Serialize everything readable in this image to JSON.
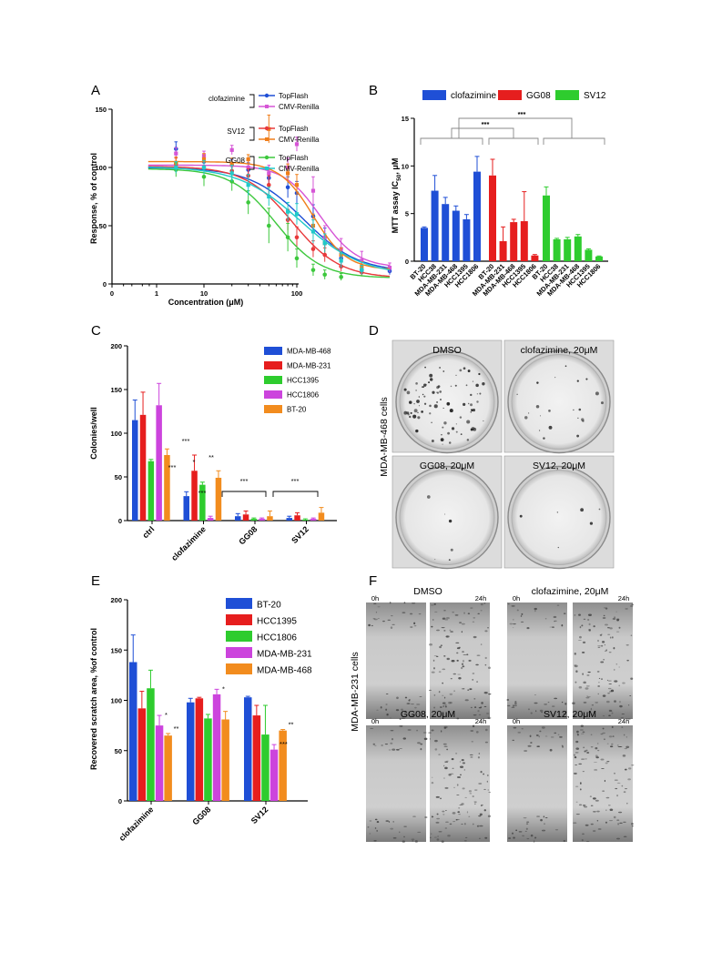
{
  "panels": {
    "A": {
      "letter": "A",
      "chart_data": {
        "type": "scatter",
        "xlabel": "Concentration (μM)",
        "ylabel": "Response, % of control",
        "xscale": "log",
        "xticks": [
          "0",
          "1",
          "10",
          "100"
        ],
        "yticks": [
          0,
          50,
          100,
          150
        ],
        "ylim": [
          0,
          150
        ],
        "legend": {
          "placement": "top-right",
          "groups": [
            {
              "label": "clofazimine",
              "entries": [
                "TopFlash",
                "CMV-Renilla"
              ]
            },
            {
              "label": "SV12",
              "entries": [
                "TopFlash",
                "CMV-Renilla"
              ]
            },
            {
              "label": "GG08",
              "entries": [
                "TopFlash",
                "CMV-Renilla"
              ]
            }
          ]
        },
        "series": [
          {
            "group": "clofazimine",
            "name": "TopFlash",
            "color": "#1f4fd6",
            "ic50": 12,
            "hill": 1.5,
            "top": 100,
            "bottom": 10,
            "x": [
              0.5,
              1,
              2,
              3,
              5,
              8,
              10,
              15,
              20,
              30,
              50,
              100
            ],
            "y": [
              116,
              105,
              102,
              98,
              91,
              83,
              78,
              58,
              40,
              22,
              12,
              11
            ],
            "err": [
              6,
              5,
              5,
              6,
              8,
              9,
              10,
              10,
              8,
              5,
              3,
              3
            ]
          },
          {
            "group": "clofazimine",
            "name": "CMV-Renilla",
            "color": "#d655d6",
            "ic50": 18,
            "hill": 2.2,
            "top": 102,
            "bottom": 14,
            "x": [
              0.5,
              1,
              2,
              3,
              5,
              8,
              10,
              15,
              20,
              30,
              50,
              100
            ],
            "y": [
              112,
              110,
              115,
              100,
              95,
              100,
              120,
              80,
              40,
              30,
              20,
              14
            ],
            "err": [
              5,
              4,
              4,
              6,
              7,
              8,
              6,
              12,
              10,
              9,
              8,
              4
            ]
          },
          {
            "group": "SV12",
            "name": "TopFlash",
            "color": "#e8393b",
            "ic50": 9,
            "hill": 1.7,
            "top": 101,
            "bottom": 5,
            "x": [
              0.5,
              1,
              2,
              3,
              5,
              8,
              10,
              15,
              20,
              30,
              50
            ],
            "y": [
              103,
              100,
              97,
              93,
              85,
              55,
              40,
              30,
              25,
              15,
              10
            ],
            "err": [
              5,
              5,
              6,
              6,
              8,
              9,
              9,
              7,
              6,
              4,
              3
            ]
          },
          {
            "group": "SV12",
            "name": "CMV-Renilla",
            "color": "#f07e1a",
            "ic50": 15,
            "hill": 2.4,
            "top": 105,
            "bottom": 12,
            "x": [
              0.5,
              1,
              2,
              3,
              5,
              8,
              10,
              15,
              20,
              30,
              50
            ],
            "y": [
              104,
              107,
              103,
              107,
              133,
              95,
              85,
              50,
              35,
              25,
              15
            ],
            "err": [
              5,
              5,
              5,
              4,
              12,
              8,
              9,
              10,
              8,
              6,
              4
            ]
          },
          {
            "group": "GG08",
            "name": "TopFlash",
            "color": "#3dc83d",
            "ic50": 6,
            "hill": 1.8,
            "top": 99,
            "bottom": 5,
            "x": [
              0.5,
              1,
              2,
              3,
              5,
              8,
              10,
              15,
              20,
              30
            ],
            "y": [
              98,
              92,
              88,
              70,
              50,
              40,
              22,
              12,
              8,
              6
            ],
            "err": [
              6,
              8,
              8,
              10,
              15,
              12,
              8,
              5,
              4,
              3
            ]
          },
          {
            "group": "GG08",
            "name": "CMV-Renilla",
            "color": "#22c9c9",
            "ic50": 11,
            "hill": 1.3,
            "top": 101,
            "bottom": 7,
            "x": [
              0.5,
              1,
              2,
              3,
              5,
              8,
              10,
              15,
              20,
              30,
              50
            ],
            "y": [
              100,
              100,
              95,
              85,
              75,
              62,
              60,
              45,
              35,
              20,
              12
            ],
            "err": [
              5,
              6,
              7,
              9,
              8,
              8,
              9,
              10,
              8,
              6,
              4
            ]
          }
        ]
      }
    },
    "B": {
      "letter": "B",
      "chart_data": {
        "type": "bar",
        "ylabel": "MTT assay IC",
        "ylabel_sub": "50",
        "ylabel_unit": ", μM",
        "ylim": [
          0,
          15
        ],
        "yticks": [
          0,
          5,
          10,
          15
        ],
        "legend": {
          "placement": "top",
          "entries": [
            {
              "name": "clofazimine",
              "color": "#1f4fd6"
            },
            {
              "name": "GG08",
              "color": "#e61e1e"
            },
            {
              "name": "SV12",
              "color": "#2ecc2e"
            }
          ]
        },
        "groups": [
          {
            "name": "clofazimine",
            "color": "#1f4fd6",
            "categories": [
              "BT-20",
              "HCC38",
              "MDA-MB-231",
              "MDA-MB-468",
              "HCC1395",
              "HCC1806"
            ],
            "values": [
              3.5,
              7.4,
              6.0,
              5.3,
              4.4,
              9.4
            ],
            "err": [
              0.1,
              1.6,
              0.7,
              0.5,
              0.5,
              1.6
            ]
          },
          {
            "name": "GG08",
            "color": "#e61e1e",
            "categories": [
              "BT-20",
              "MDA-MB-231",
              "MDA-MB-468",
              "HCC1395",
              "HCC1806"
            ],
            "values": [
              9.0,
              2.1,
              4.1,
              4.2,
              0.6
            ],
            "err": [
              1.7,
              1.5,
              0.3,
              3.1,
              0.1
            ]
          },
          {
            "name": "SV12",
            "color": "#2ecc2e",
            "categories": [
              "BT-20",
              "HCC38",
              "MDA-MB-231",
              "MDA-MB-468",
              "HCC1395",
              "HCC1806"
            ],
            "values": [
              6.9,
              2.3,
              2.3,
              2.6,
              1.2,
              0.5
            ],
            "err": [
              0.9,
              0.1,
              0.2,
              0.2,
              0.1,
              0.05
            ]
          }
        ],
        "significance": [
          "***",
          "***"
        ]
      }
    },
    "C": {
      "letter": "C",
      "chart_data": {
        "type": "bar",
        "ylabel": "Colonies/well",
        "ylim": [
          0,
          200
        ],
        "yticks": [
          0,
          50,
          100,
          150,
          200
        ],
        "categories": [
          "ctrl",
          "clofazimine",
          "GG08",
          "SV12"
        ],
        "legend": {
          "placement": "top-right"
        },
        "series": [
          {
            "name": "MDA-MB-468",
            "color": "#1f4fd6",
            "values": [
              115,
              28,
              5,
              3
            ],
            "err": [
              23,
              5,
              3,
              2
            ]
          },
          {
            "name": "MDA-MB-231",
            "color": "#e61e1e",
            "values": [
              121,
              57,
              7,
              6
            ],
            "err": [
              26,
              18,
              4,
              3
            ]
          },
          {
            "name": "HCC1395",
            "color": "#2ecc2e",
            "values": [
              68,
              41,
              2,
              1
            ],
            "err": [
              2,
              3,
              1,
              1
            ]
          },
          {
            "name": "HCC1806",
            "color": "#cc44dd",
            "values": [
              132,
              3,
              2,
              2
            ],
            "err": [
              25,
              2,
              1,
              1
            ]
          },
          {
            "name": "BT-20",
            "color": "#f28c1e",
            "values": [
              75,
              49,
              5,
              9
            ],
            "err": [
              7,
              8,
              6,
              6
            ]
          }
        ],
        "annotations": {
          "clofazimine": [
            "***",
            "***",
            "*",
            "***",
            "**"
          ],
          "GG08": "***",
          "SV12": "***"
        }
      }
    },
    "D": {
      "letter": "D",
      "side_label": "MDA-MB-468 cells",
      "images": [
        "DMSO",
        "clofazimine, 20μM",
        "GG08, 20μM",
        "SV12, 20μM"
      ]
    },
    "E": {
      "letter": "E",
      "chart_data": {
        "type": "bar",
        "ylabel": "Recovered scratch area, %of control",
        "ylim": [
          0,
          200
        ],
        "yticks": [
          0,
          50,
          100,
          150,
          200
        ],
        "categories": [
          "clofazimine",
          "GG08",
          "SV12"
        ],
        "legend": {
          "placement": "top-right"
        },
        "series": [
          {
            "name": "BT-20",
            "color": "#1f4fd6",
            "values": [
              138,
              98,
              103
            ],
            "err": [
              27,
              4,
              1
            ]
          },
          {
            "name": "HCC1395",
            "color": "#e61e1e",
            "values": [
              92,
              102,
              85
            ],
            "err": [
              17,
              1,
              10
            ]
          },
          {
            "name": "HCC1806",
            "color": "#2ecc2e",
            "values": [
              112,
              82,
              66
            ],
            "err": [
              18,
              4,
              29
            ]
          },
          {
            "name": "MDA-MB-231",
            "color": "#cc44dd",
            "values": [
              75,
              106,
              51
            ],
            "err": [
              10,
              5,
              5
            ]
          },
          {
            "name": "MDA-MB-468",
            "color": "#f28c1e",
            "values": [
              65,
              81,
              70
            ],
            "err": [
              2,
              8,
              1
            ]
          }
        ],
        "annotations": {
          "clofazimine": [
            "",
            "",
            "",
            "*",
            "**"
          ],
          "GG08": [
            "",
            "",
            "",
            "*",
            ""
          ],
          "SV12": [
            "",
            "",
            "",
            "***",
            "**"
          ]
        }
      }
    },
    "F": {
      "letter": "F",
      "side_label": "MDA-MB-231 cells",
      "time_start": "0h",
      "time_end": "24h",
      "images": [
        "DMSO",
        "clofazimine, 20μM",
        "GG08, 20μM",
        "SV12, 20μM"
      ]
    }
  }
}
